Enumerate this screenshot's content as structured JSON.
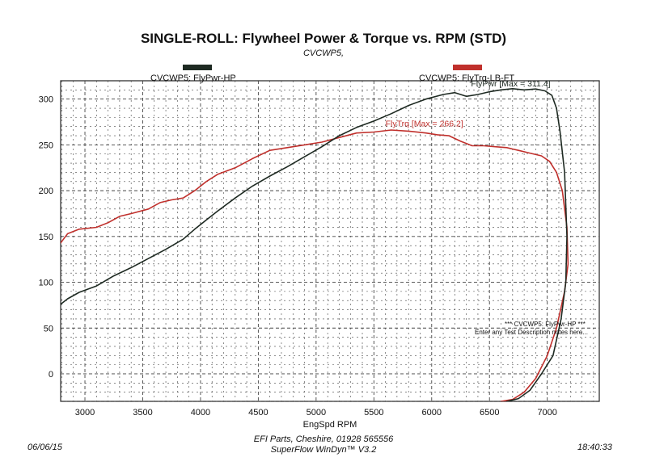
{
  "header": {
    "title": "SINGLE-ROLL: Flywheel Power & Torque vs. RPM (STD)",
    "subtitle": "CVCWP5,"
  },
  "legend": {
    "power_label": "CVCWP5: FlyPwr-HP",
    "torque_label": "CVCWP5: FlyTrq-LB-FT"
  },
  "annotations": {
    "power_max": "FlyPwr [Max = 311.4]",
    "torque_max": "FlyTrq [Max = 266.2]",
    "note1": "*** CVCWP5: FlyPwr-HP ***",
    "note2": "Enter any Test Description notes here..."
  },
  "footer": {
    "date": "06/06/15",
    "time": "18:40:33",
    "line1": "EFI Parts, Cheshire, 01928 565556",
    "line2": "SuperFlow WinDyn™ V3.2"
  },
  "colors": {
    "power": "#1e2a22",
    "torque": "#c0302c",
    "grid": "#444444"
  },
  "chart_data": {
    "type": "line",
    "xlabel": "EngSpd RPM",
    "ylabel": "",
    "xlim": [
      2790,
      7450
    ],
    "ylim": [
      -30,
      320
    ],
    "xticks": [
      3000,
      3500,
      4000,
      4500,
      5000,
      5500,
      6000,
      6500,
      7000
    ],
    "yticks": [
      0,
      50,
      100,
      150,
      200,
      250,
      300
    ],
    "grid": true,
    "series": [
      {
        "name": "CVCWP5: FlyPwr-HP",
        "color": "#1e2a22",
        "x": [
          2790,
          2850,
          2950,
          3100,
          3250,
          3400,
          3550,
          3700,
          3850,
          3950,
          4050,
          4150,
          4300,
          4450,
          4600,
          4750,
          4900,
          5050,
          5200,
          5350,
          5500,
          5650,
          5800,
          5950,
          6100,
          6200,
          6300,
          6400,
          6500,
          6600,
          6700,
          6800,
          6900,
          6980,
          7040,
          7080,
          7110,
          7150,
          7170,
          7160,
          7120,
          7050,
          6950,
          6850,
          6750,
          6650
        ],
        "y": [
          76,
          82,
          89,
          96,
          107,
          116,
          126,
          136,
          147,
          158,
          168,
          178,
          192,
          205,
          216,
          226,
          237,
          248,
          260,
          269,
          276,
          284,
          293,
          300,
          305,
          307,
          303,
          305,
          308,
          310,
          311.4,
          310,
          311,
          309,
          304,
          290,
          265,
          220,
          150,
          100,
          60,
          20,
          0,
          -18,
          -27,
          -30
        ]
      },
      {
        "name": "CVCWP5: FlyTrq-LB-FT",
        "color": "#c0302c",
        "x": [
          2790,
          2850,
          2950,
          3100,
          3200,
          3300,
          3400,
          3550,
          3650,
          3750,
          3850,
          3950,
          4050,
          4150,
          4300,
          4450,
          4600,
          4750,
          4900,
          5050,
          5200,
          5350,
          5500,
          5650,
          5800,
          5950,
          6050,
          6150,
          6250,
          6350,
          6450,
          6550,
          6650,
          6750,
          6850,
          6950,
          7020,
          7080,
          7130,
          7170,
          7180,
          7150,
          7080,
          7000,
          6900,
          6800,
          6700,
          6600
        ],
        "y": [
          143,
          153,
          158,
          160,
          165,
          172,
          175,
          180,
          187,
          190,
          192,
          200,
          210,
          218,
          225,
          235,
          244,
          247,
          250,
          253,
          258,
          263,
          264,
          266.2,
          265,
          263,
          261,
          260,
          254,
          249,
          249,
          248,
          247,
          244,
          241,
          238,
          232,
          220,
          200,
          160,
          120,
          90,
          50,
          20,
          -5,
          -20,
          -28,
          -30
        ]
      }
    ]
  }
}
